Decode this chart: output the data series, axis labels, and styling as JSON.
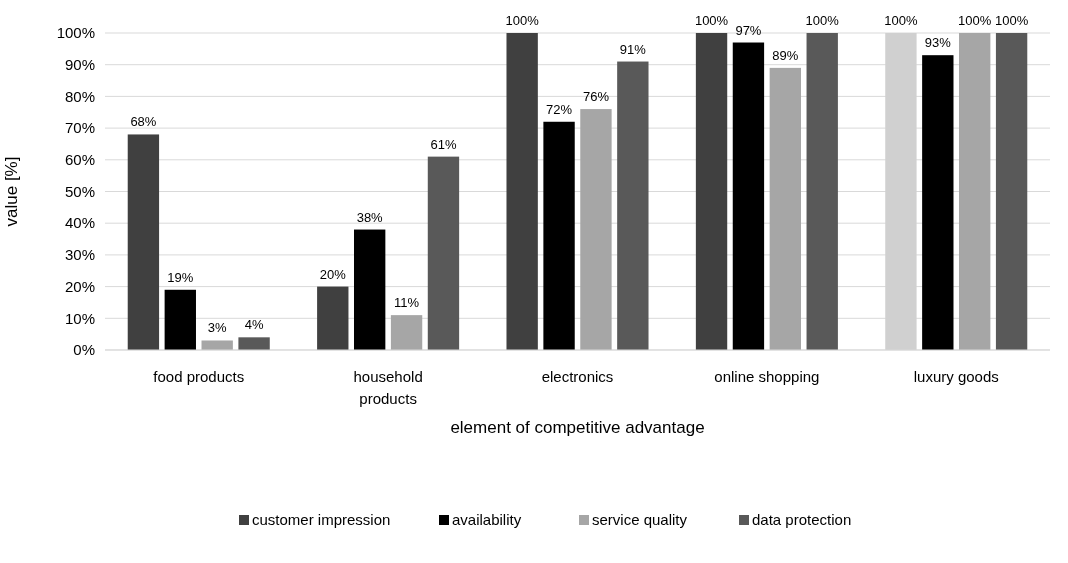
{
  "chart_data": {
    "type": "bar",
    "xlabel": "element of competitive advantage",
    "ylabel": "value [%]",
    "categories": [
      "food products",
      "household products",
      "electronics",
      "online shopping",
      "luxury goods"
    ],
    "series": [
      {
        "name": "customer impression",
        "color": "#404040",
        "colors": [
          "#404040",
          "#404040",
          "#404040",
          "#404040",
          "#d0d0d0"
        ],
        "values": [
          68,
          20,
          100,
          100,
          100
        ],
        "value_labels": [
          "68%",
          "20%",
          "100%",
          "100%",
          "100%"
        ]
      },
      {
        "name": "availability",
        "color": "#000000",
        "values": [
          19,
          38,
          72,
          97,
          93
        ],
        "value_labels": [
          "19%",
          "38%",
          "72%",
          "97%",
          "93%"
        ]
      },
      {
        "name": "service quality",
        "color": "#a6a6a6",
        "values": [
          3,
          11,
          76,
          89,
          100
        ],
        "value_labels": [
          "3%",
          "11%",
          "76%",
          "89%",
          "100%"
        ]
      },
      {
        "name": "data protection",
        "color": "#595959",
        "values": [
          4,
          61,
          91,
          100,
          100
        ],
        "value_labels": [
          "4%",
          "61%",
          "91%",
          "100%",
          "100%"
        ]
      }
    ],
    "ylim": [
      0,
      100
    ],
    "yticks": [
      {
        "value": 0,
        "label": "0%"
      },
      {
        "value": 10,
        "label": "10%"
      },
      {
        "value": 20,
        "label": "20%"
      },
      {
        "value": 30,
        "label": "30%"
      },
      {
        "value": 40,
        "label": "40%"
      },
      {
        "value": 50,
        "label": "50%"
      },
      {
        "value": 60,
        "label": "60%"
      },
      {
        "value": 70,
        "label": "70%"
      },
      {
        "value": 80,
        "label": "80%"
      },
      {
        "value": 90,
        "label": "90%"
      },
      {
        "value": 100,
        "label": "100%"
      }
    ],
    "grid": "y",
    "legend": "bottom"
  }
}
